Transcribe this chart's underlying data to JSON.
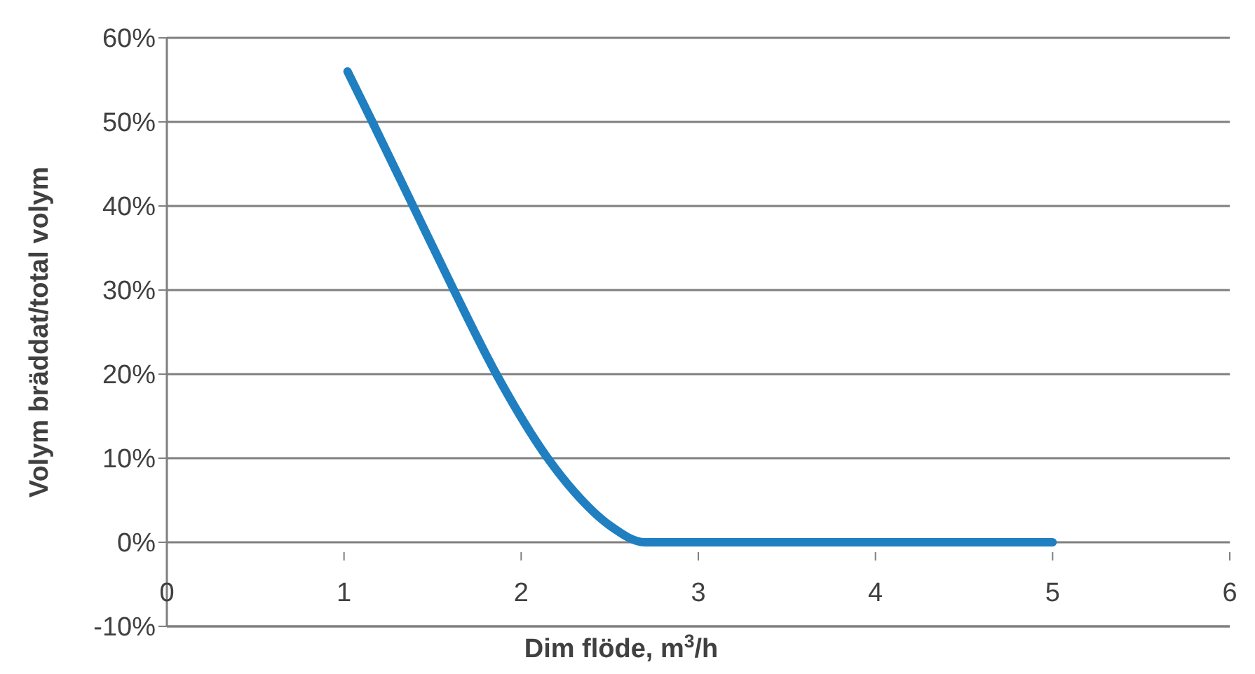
{
  "chart_data": {
    "type": "line",
    "xlabel": "Dim flöde, m$^{3}$/h",
    "ylabel": "Volym bräddat/total  volym",
    "x": [
      1.02,
      1.16,
      1.39,
      1.62,
      1.86,
      2.15,
      2.3,
      2.5,
      2.7,
      3,
      3.5,
      4,
      4.5,
      5
    ],
    "series": [
      {
        "color": "#1f7fc0",
        "values": [
          56,
          50,
          40,
          30,
          20,
          10,
          6,
          2,
          0,
          0,
          0,
          0,
          0,
          0
        ]
      }
    ],
    "xlim": [
      0,
      6
    ],
    "xticks": [
      0,
      1,
      2,
      3,
      4,
      5,
      6
    ],
    "ylim": [
      -10,
      60
    ],
    "yticks": [
      {
        "value": -10,
        "label": "-10%"
      },
      {
        "value": 0,
        "label": "0%"
      },
      {
        "value": 10,
        "label": "10%"
      },
      {
        "value": 20,
        "label": "20%"
      },
      {
        "value": 30,
        "label": "30%"
      },
      {
        "value": 40,
        "label": "40%"
      },
      {
        "value": 50,
        "label": "50%"
      },
      {
        "value": 60,
        "label": "60%"
      }
    ],
    "grid": "y",
    "marker": "none",
    "line_style": "solid"
  }
}
